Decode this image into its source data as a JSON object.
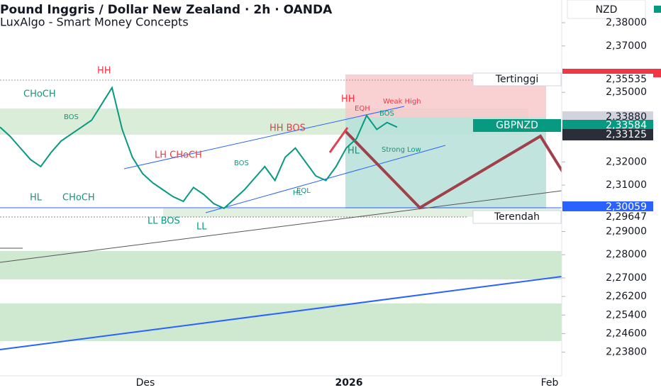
{
  "chart_data": {
    "type": "line",
    "title": "Pound Inggris / Dollar New Zealand · 2h · OANDA",
    "subtitle": "LuxAlgo - Smart Money Concepts",
    "currency": "NZD",
    "color": "#089981",
    "values": [
      2.335,
      2.331,
      2.326,
      2.321,
      2.318,
      2.324,
      2.329,
      2.332,
      2.335,
      2.338,
      2.345,
      2.352,
      2.334,
      2.322,
      2.315,
      2.311,
      2.308,
      2.305,
      2.303,
      2.309,
      2.306,
      2.302,
      2.3,
      2.304,
      2.308,
      2.313,
      2.318,
      2.312,
      2.322,
      2.326,
      2.32,
      2.314,
      2.312,
      2.318,
      2.326,
      2.33,
      2.34,
      2.334,
      2.337,
      2.335
    ],
    "ylim": [
      2.2278,
      2.3898
    ],
    "yticks": [
      {
        "value": 2.38,
        "label": "2,38000"
      },
      {
        "value": 2.37,
        "label": "2,37000"
      },
      {
        "value": 2.35,
        "label": "2,35000"
      },
      {
        "value": 2.32,
        "label": "2,32000"
      },
      {
        "value": 2.31,
        "label": "2,31000"
      },
      {
        "value": 2.29,
        "label": "2,29000"
      },
      {
        "value": 2.28,
        "label": "2,28000"
      },
      {
        "value": 2.27,
        "label": "2,27000"
      },
      {
        "value": 2.262,
        "label": "2,26200"
      },
      {
        "value": 2.254,
        "label": "2,25400"
      },
      {
        "value": 2.246,
        "label": "2,24600"
      },
      {
        "value": 2.238,
        "label": "2,23800"
      }
    ],
    "x_labels": [
      "Des",
      "2026",
      "Feb"
    ],
    "price_labels": [
      {
        "name": "Tertinggi",
        "price": "2,35535"
      },
      {
        "price": "2,33880"
      },
      {
        "name": "GBPNZD",
        "price": "2,33584"
      },
      {
        "price": "2,33125"
      },
      {
        "price": "2,30059"
      },
      {
        "name": "Terendah",
        "price": "2,29647"
      }
    ],
    "annotations": [
      "HH",
      "CHoCH",
      "HL",
      "CHoCH",
      "LL BOS",
      "LL",
      "LH CHoCH",
      "HH BOS",
      "HH",
      "HL",
      "Weak High",
      "Strong Low",
      "EQH",
      "EQL",
      "HL",
      "BOS",
      "BOS",
      "BOS"
    ]
  }
}
